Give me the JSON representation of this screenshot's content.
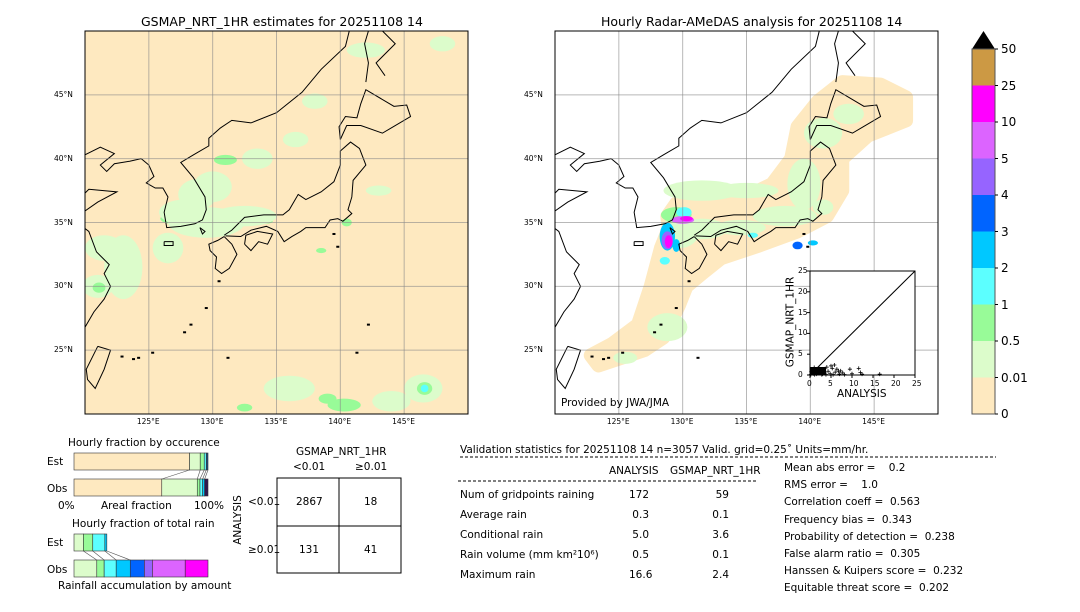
{
  "left_map": {
    "title": "GSMAP_NRT_1HR estimates for 20251108 14"
  },
  "right_map": {
    "title": "Hourly Radar-AMeDAS analysis for 20251108 14",
    "credit": "Provided by JWA/JMA"
  },
  "map_axes": {
    "lon_range": [
      120,
      150
    ],
    "lat_range": [
      20,
      50
    ],
    "lon_ticks": [
      "125°E",
      "130°E",
      "135°E",
      "140°E",
      "145°E"
    ],
    "lat_ticks": [
      "45°N",
      "40°N",
      "35°N",
      "30°N",
      "25°N"
    ]
  },
  "colorbar": {
    "labels": [
      "0",
      "0.01",
      "0.5",
      "1",
      "2",
      "3",
      "4",
      "5",
      "10",
      "25",
      "50"
    ],
    "colors": [
      "#fee9c0",
      "#dcfccb",
      "#98fb98",
      "#5cffff",
      "#00c8ff",
      "#0064ff",
      "#9664ff",
      "#dc64ff",
      "#ff00ff",
      "#cc9944"
    ],
    "extend_color": "#000000"
  },
  "chart_data": [
    {
      "type": "heatmap",
      "name": "gsmap",
      "rain_areas": [
        [
          127.5,
          35.3,
          1.6,
          0.5,
          2
        ],
        [
          128.2,
          35.4,
          1.0,
          0.3,
          3
        ],
        [
          130,
          35.3,
          1.4,
          0.6,
          2
        ],
        [
          131.5,
          34.9,
          1.0,
          0.4,
          2
        ],
        [
          133,
          35.1,
          0.9,
          0.3,
          1
        ],
        [
          134.2,
          35.1,
          0.5,
          0.2,
          2
        ],
        [
          127.8,
          35.8,
          2.0,
          1.0,
          1
        ],
        [
          129.5,
          35.0,
          3.0,
          1.2,
          1
        ],
        [
          132.5,
          35.5,
          2.5,
          0.8,
          1
        ],
        [
          131,
          39.9,
          0.9,
          0.4,
          2
        ],
        [
          134,
          39.8,
          0.4,
          0.4,
          3
        ],
        [
          133.5,
          40,
          1.2,
          0.8,
          1
        ],
        [
          128.8,
          37.2,
          1.5,
          1.2,
          1
        ],
        [
          130,
          37.8,
          1.5,
          1.2,
          1
        ],
        [
          121,
          30,
          1.2,
          0.9,
          1
        ],
        [
          121.1,
          29.9,
          0.5,
          0.4,
          2
        ],
        [
          123,
          31.5,
          1.5,
          2.5,
          1
        ],
        [
          121.5,
          33,
          1.5,
          1,
          1
        ],
        [
          126.5,
          33,
          1.2,
          1.2,
          1
        ],
        [
          146.5,
          22,
          1.5,
          1.1,
          1
        ],
        [
          146.6,
          22,
          0.6,
          0.5,
          2
        ],
        [
          146.6,
          22,
          0.3,
          0.3,
          3
        ],
        [
          140.3,
          20.7,
          0.8,
          0.3,
          3
        ],
        [
          140.3,
          20.7,
          1.3,
          0.5,
          2
        ],
        [
          139,
          21.2,
          0.7,
          0.4,
          2
        ],
        [
          132.5,
          20.5,
          0.6,
          0.3,
          2
        ],
        [
          144,
          21,
          1.5,
          0.8,
          1
        ],
        [
          136,
          22,
          2,
          1,
          1
        ],
        [
          136.5,
          41.5,
          1,
          0.6,
          1
        ],
        [
          138,
          44.5,
          1,
          0.6,
          1
        ],
        [
          142,
          48.5,
          1.5,
          0.6,
          1
        ],
        [
          148,
          49,
          1,
          0.6,
          1
        ],
        [
          143,
          37.5,
          1,
          0.4,
          1
        ],
        [
          138.5,
          32.8,
          0.4,
          0.2,
          2
        ],
        [
          140.5,
          35,
          0.4,
          0.3,
          2
        ]
      ]
    },
    {
      "type": "heatmap",
      "name": "radar",
      "coverage": [
        [
          123.4,
          23.8
        ],
        [
          127,
          25
        ],
        [
          128.5,
          26
        ],
        [
          129.7,
          28.5
        ],
        [
          130.3,
          30
        ],
        [
          131.5,
          31
        ],
        [
          133,
          32.2
        ],
        [
          136,
          33.2
        ],
        [
          139,
          34.3
        ],
        [
          141.3,
          35.5
        ],
        [
          142.5,
          37.5
        ],
        [
          142.5,
          40
        ],
        [
          144.5,
          41.8
        ],
        [
          147.5,
          43
        ],
        [
          147.5,
          44.8
        ],
        [
          145.5,
          45.8
        ],
        [
          142.5,
          46
        ],
        [
          140.6,
          44.5
        ],
        [
          139,
          42.5
        ],
        [
          138.5,
          40
        ],
        [
          137,
          38
        ],
        [
          134.5,
          36.8
        ],
        [
          132,
          36.6
        ],
        [
          129.5,
          36.5
        ],
        [
          128.8,
          35.5
        ],
        [
          128.9,
          34.5
        ],
        [
          128.3,
          33
        ],
        [
          127.5,
          30
        ],
        [
          126.5,
          27
        ],
        [
          124.5,
          25.5
        ],
        [
          122.8,
          24.6
        ]
      ],
      "rain_areas": [
        [
          131.5,
          37.5,
          3,
          0.8,
          1
        ],
        [
          135,
          37.5,
          2.5,
          0.6,
          1
        ],
        [
          139.5,
          38,
          1.3,
          2,
          1
        ],
        [
          141,
          42,
          1.5,
          1.2,
          1
        ],
        [
          143,
          43.5,
          1.2,
          0.8,
          1
        ],
        [
          129.8,
          34.3,
          1.5,
          1.3,
          1
        ],
        [
          131.5,
          34.5,
          2,
          0.8,
          1
        ],
        [
          134.5,
          34.6,
          2,
          0.6,
          1
        ],
        [
          138,
          35.5,
          2.5,
          0.8,
          1
        ],
        [
          141,
          36.2,
          0.8,
          0.6,
          1
        ],
        [
          129.5,
          35.6,
          1.2,
          0.6,
          2
        ],
        [
          130.1,
          35.8,
          0.6,
          0.4,
          3
        ],
        [
          130,
          35.2,
          0.9,
          0.3,
          7
        ],
        [
          130.3,
          35.3,
          0.5,
          0.2,
          8
        ],
        [
          128.8,
          33.9,
          0.6,
          1.1,
          4
        ],
        [
          128.8,
          33.6,
          0.45,
          0.7,
          6
        ],
        [
          128.9,
          33.5,
          0.3,
          0.5,
          8
        ],
        [
          129.5,
          33.2,
          0.3,
          0.5,
          4
        ],
        [
          139,
          33.2,
          0.4,
          0.3,
          5
        ],
        [
          140.2,
          33.4,
          0.4,
          0.2,
          4
        ],
        [
          135.5,
          34,
          0.4,
          0.2,
          3
        ],
        [
          128.6,
          32,
          0.4,
          0.3,
          3
        ]
      ]
    },
    {
      "type": "scatter",
      "xlabel": "ANALYSIS",
      "ylabel": "GSMAP_NRT_1HR",
      "xlim": [
        0,
        25
      ],
      "ylim": [
        0,
        25
      ],
      "ticks": [
        "0",
        "5",
        "10",
        "15",
        "20",
        "25"
      ],
      "points": [
        [
          0.2,
          0.1
        ],
        [
          0.4,
          0.5
        ],
        [
          0.6,
          1.2
        ],
        [
          0.8,
          0.3
        ],
        [
          1,
          1.8
        ],
        [
          1.2,
          0.6
        ],
        [
          1.5,
          0.2
        ],
        [
          1.8,
          1.1
        ],
        [
          2,
          0.4
        ],
        [
          2.3,
          1.5
        ],
        [
          2.6,
          0.8
        ],
        [
          3,
          0.2
        ],
        [
          3.2,
          1.3
        ],
        [
          3.5,
          0.5
        ],
        [
          4,
          1.9
        ],
        [
          4.3,
          0.9
        ],
        [
          4.8,
          0.3
        ],
        [
          5,
          2.2
        ],
        [
          5.3,
          1.6
        ],
        [
          5.8,
          2.4
        ],
        [
          6,
          0.7
        ],
        [
          6.4,
          1.4
        ],
        [
          7,
          0.2
        ],
        [
          7.3,
          1
        ],
        [
          7.8,
          0.5
        ],
        [
          8.2,
          0.1
        ],
        [
          9.5,
          1.4
        ],
        [
          10,
          0.3
        ],
        [
          11.6,
          1.6
        ],
        [
          12,
          0.6
        ],
        [
          12.4,
          0.2
        ],
        [
          16.6,
          0.2
        ],
        [
          0.3,
          0.8
        ],
        [
          1.1,
          0.1
        ],
        [
          2.8,
          0.1
        ],
        [
          3.8,
          0.1
        ],
        [
          5.5,
          0.1
        ],
        [
          6.8,
          0.9
        ]
      ]
    },
    {
      "type": "bar",
      "title": "Hourly fraction by occurence",
      "xlabel": "Areal fraction",
      "categories": [
        "Est",
        "Obs"
      ],
      "tick_labels": [
        "0%",
        "100%"
      ],
      "series": [
        [
          0.862,
          0.08,
          0.03,
          0.015,
          0.013
        ],
        [
          0.655,
          0.265,
          0.02,
          0.02,
          0.015,
          0.025
        ]
      ]
    },
    {
      "type": "bar",
      "title": "Hourly fraction of total rain",
      "xlabel": "Rainfall accumulation by amount",
      "categories": [
        "Est",
        "Obs"
      ],
      "series": [
        [
          0.07,
          0.07,
          0.09,
          0.015
        ],
        [
          0.17,
          0.055,
          0.09,
          0.105,
          0.105,
          0.06,
          0.245,
          0.17
        ]
      ]
    },
    {
      "type": "table",
      "title": "GSMAP_NRT_1HR",
      "col_labels": [
        "<0.01",
        "≥0.01"
      ],
      "row_title": "ANALYSIS",
      "row_labels": [
        "<0.01",
        "≥0.01"
      ],
      "cells": [
        [
          "2867",
          "18"
        ],
        [
          "131",
          "41"
        ]
      ]
    }
  ],
  "stats": {
    "header": "Validation statistics for 20251108 14  n=3057 Valid. grid=0.25˚ Units=mm/hr.",
    "cols": [
      "ANALYSIS",
      "GSMAP_NRT_1HR"
    ],
    "rows": [
      [
        "Num of gridpoints raining",
        "172",
        "59"
      ],
      [
        "Average rain",
        "0.3",
        "0.1"
      ],
      [
        "Conditional rain",
        "5.0",
        "3.6"
      ],
      [
        "Rain volume (mm km²10⁶)",
        "0.5",
        "0.1"
      ],
      [
        "Maximum rain",
        "16.6",
        "2.4"
      ]
    ],
    "scores": [
      "Mean abs error =    0.2",
      "RMS error =    1.0",
      "Correlation coeff =  0.563",
      "Frequency bias =  0.343",
      "Probability of detection =  0.238",
      "False alarm ratio =  0.305",
      "Hanssen & Kuipers score =  0.232",
      "Equitable threat score =  0.202"
    ]
  }
}
